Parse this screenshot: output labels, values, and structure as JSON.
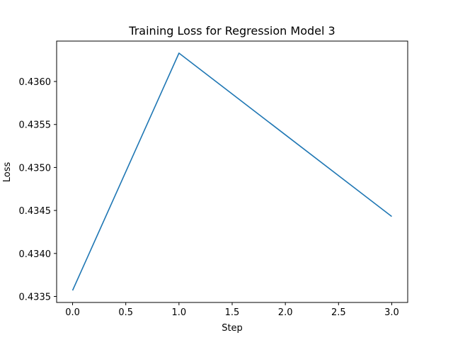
{
  "chart_data": {
    "type": "line",
    "title": "Training Loss for Regression Model 3",
    "xlabel": "Step",
    "ylabel": "Loss",
    "x": [
      0,
      1,
      2,
      3
    ],
    "series": [
      {
        "values": [
          0.43357,
          0.43633,
          0.43538,
          0.43443
        ],
        "color": "#1f77b4"
      }
    ],
    "xlim": [
      -0.15,
      3.15
    ],
    "ylim": [
      0.43343,
      0.43647
    ],
    "xticks": [
      0.0,
      0.5,
      1.0,
      1.5,
      2.0,
      2.5,
      3.0
    ],
    "xtick_labels": [
      "0.0",
      "0.5",
      "1.0",
      "1.5",
      "2.0",
      "2.5",
      "3.0"
    ],
    "yticks": [
      0.4335,
      0.434,
      0.4345,
      0.435,
      0.4355,
      0.436
    ],
    "ytick_labels": [
      "0.4335",
      "0.4340",
      "0.4345",
      "0.4350",
      "0.4355",
      "0.4360"
    ],
    "grid": false,
    "legend": false
  }
}
